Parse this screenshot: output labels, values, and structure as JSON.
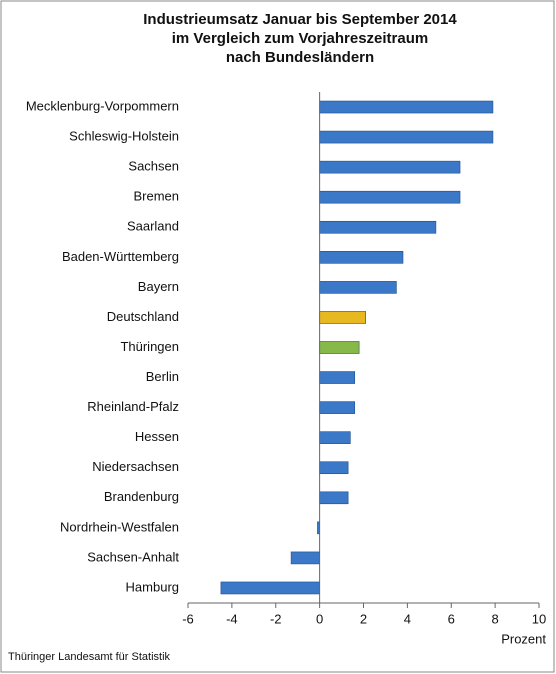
{
  "chart_data": {
    "type": "hbar",
    "title": [
      "Industrieumsatz Januar bis September 2014",
      "im Vergleich zum Vorjahreszeitraum",
      "nach Bundesländern"
    ],
    "categories": [
      "Mecklenburg-Vorpommern",
      "Schleswig-Holstein",
      "Sachsen",
      "Bremen",
      "Saarland",
      "Baden-Württemberg",
      "Bayern",
      "Deutschland",
      "Thüringen",
      "Berlin",
      "Rheinland-Pfalz",
      "Hessen",
      "Niedersachsen",
      "Brandenburg",
      "Nordrhein-Westfalen",
      "Sachsen-Anhalt",
      "Hamburg"
    ],
    "values": [
      7.9,
      7.9,
      6.4,
      6.4,
      5.3,
      3.8,
      3.5,
      2.1,
      1.8,
      1.6,
      1.6,
      1.4,
      1.3,
      1.3,
      -0.1,
      -1.3,
      -4.5
    ],
    "colors": [
      "#3b78c8",
      "#3b78c8",
      "#3b78c8",
      "#3b78c8",
      "#3b78c8",
      "#3b78c8",
      "#3b78c8",
      "#e8b820",
      "#86b84a",
      "#3b78c8",
      "#3b78c8",
      "#3b78c8",
      "#3b78c8",
      "#3b78c8",
      "#3b78c8",
      "#3b78c8",
      "#3b78c8"
    ],
    "xlim": [
      -6,
      10
    ],
    "xticks": [
      -6,
      -4,
      -2,
      0,
      2,
      4,
      6,
      8,
      10
    ],
    "xlabel": "Prozent",
    "source": "Thüringer Landesamt für Statistik"
  }
}
